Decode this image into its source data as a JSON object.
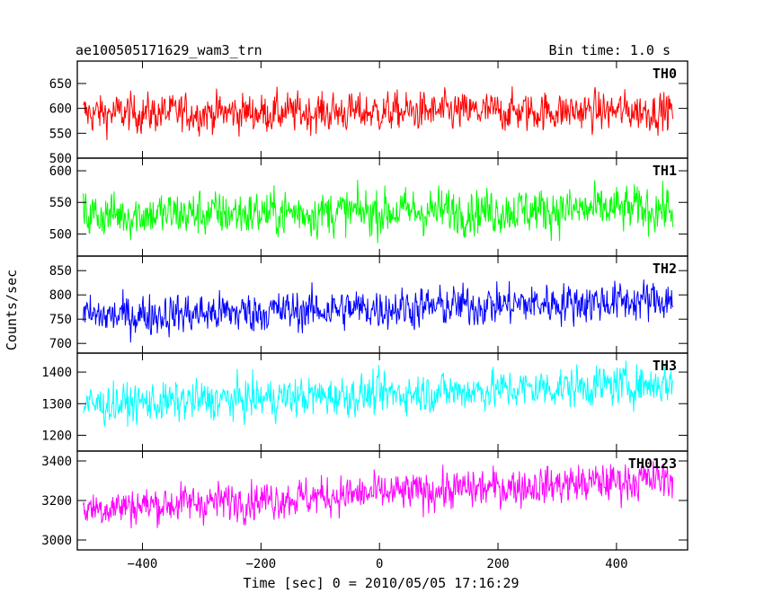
{
  "header": {
    "title": "ae100505171629_wam3_trn",
    "bin_time": "Bin time: 1.0 s"
  },
  "chart_data": {
    "type": "line",
    "xlabel": "Time [sec] 0 = 2010/05/05 17:16:29",
    "ylabel": "Counts/sec",
    "xlim": [
      -510,
      520
    ],
    "x_start": -500,
    "x_end": 495,
    "x_step": 1,
    "x_ticks": [
      -400,
      -200,
      0,
      200,
      400
    ],
    "x_tick_labels": [
      "−400",
      "−200",
      "0",
      "200",
      "400"
    ],
    "series": [
      {
        "name": "TH0",
        "color": "#ff0000",
        "ylim": [
          500,
          695
        ],
        "y_ticks": [
          500,
          550,
          600,
          650
        ],
        "y_tick_labels": [
          "500",
          "550",
          "600",
          "650"
        ],
        "mean_start": 590,
        "mean_end": 595,
        "noise": 28
      },
      {
        "name": "TH1",
        "color": "#00ff00",
        "ylim": [
          465,
          620
        ],
        "y_ticks": [
          500,
          550,
          600
        ],
        "y_tick_labels": [
          "500",
          "550",
          "600"
        ],
        "mean_start": 530,
        "mean_end": 540,
        "noise": 26
      },
      {
        "name": "TH2",
        "color": "#0000ff",
        "ylim": [
          680,
          880
        ],
        "y_ticks": [
          700,
          750,
          800,
          850
        ],
        "y_tick_labels": [
          "700",
          "750",
          "800",
          "850"
        ],
        "mean_start": 755,
        "mean_end": 790,
        "noise": 30
      },
      {
        "name": "TH3",
        "color": "#00ffff",
        "ylim": [
          1150,
          1460
        ],
        "y_ticks": [
          1200,
          1300,
          1400
        ],
        "y_tick_labels": [
          "1200",
          "1300",
          "1400"
        ],
        "mean_start": 1295,
        "mean_end": 1365,
        "noise": 45
      },
      {
        "name": "TH0123",
        "color": "#ff00ff",
        "ylim": [
          2950,
          3450
        ],
        "y_ticks": [
          3000,
          3200,
          3400
        ],
        "y_tick_labels": [
          "3000",
          "3200",
          "3400"
        ],
        "mean_start": 3160,
        "mean_end": 3310,
        "noise": 70
      }
    ]
  }
}
